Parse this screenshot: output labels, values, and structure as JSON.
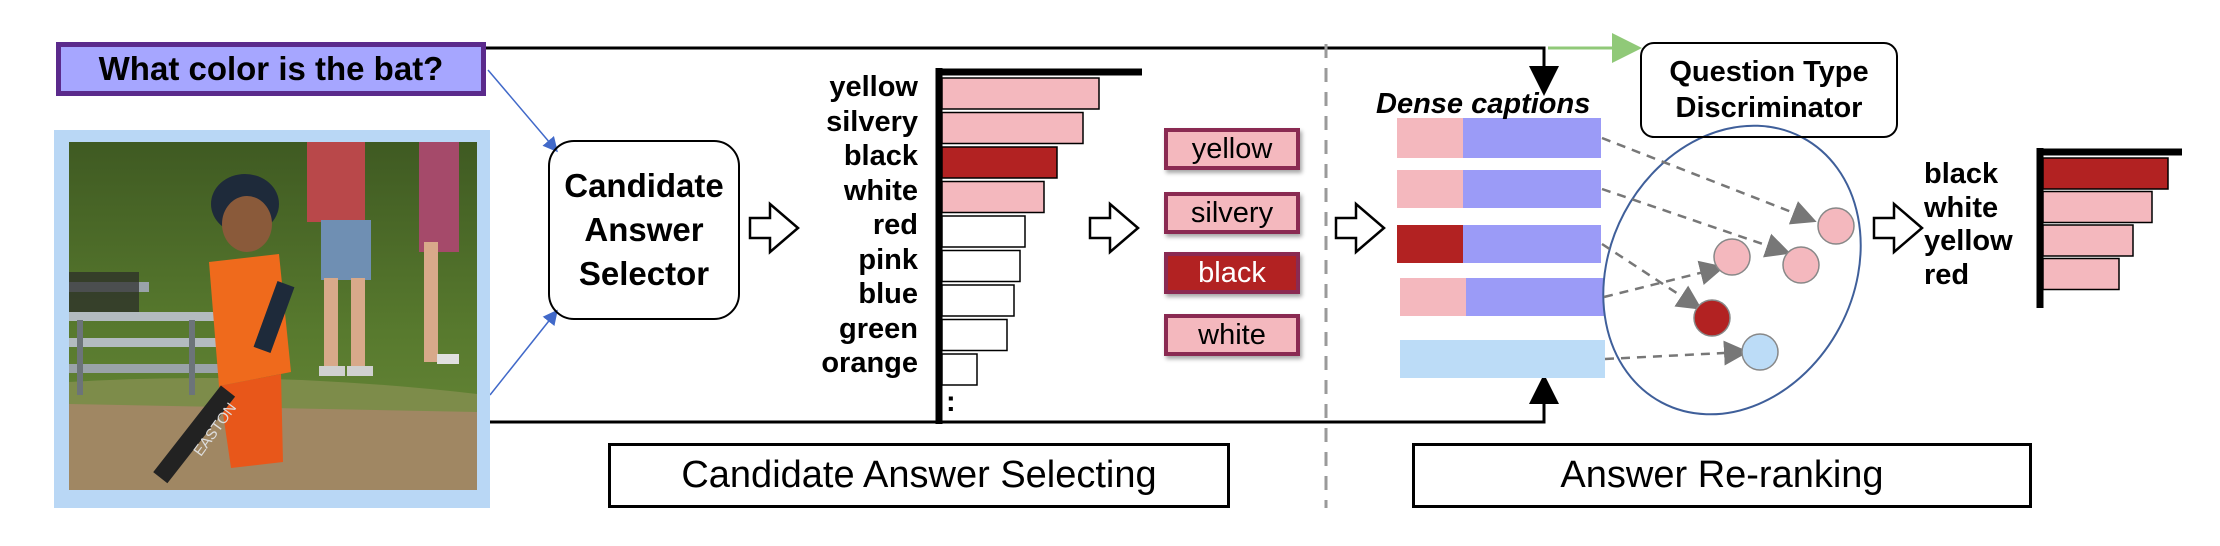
{
  "question": "What color is the bat?",
  "candidate_selector_lines": [
    "Candidate",
    "Answer",
    "Selector"
  ],
  "candidate_list": [
    "yellow",
    "silvery",
    "black",
    "white",
    "red",
    "pink",
    "blue",
    "green",
    "orange"
  ],
  "candidate_ellipsis": ":",
  "candidate_bars": [
    {
      "label": "yellow",
      "score": 0.85,
      "color": "#f4b8be"
    },
    {
      "label": "silvery",
      "score": 0.76,
      "color": "#f4b8be"
    },
    {
      "label": "black",
      "score": 0.62,
      "color": "#b22222"
    },
    {
      "label": "white",
      "score": 0.55,
      "color": "#f4b8be"
    },
    {
      "label": "red",
      "score": 0.45,
      "color": "#ffffff"
    },
    {
      "label": "pink",
      "score": 0.42,
      "color": "#ffffff"
    },
    {
      "label": "blue",
      "score": 0.39,
      "color": "#ffffff"
    },
    {
      "label": "green",
      "score": 0.35,
      "color": "#ffffff"
    },
    {
      "label": "orange",
      "score": 0.19,
      "color": "#ffffff"
    }
  ],
  "picked_answers": [
    {
      "label": "yellow",
      "fill": "#f4b8be",
      "text_color": "#000000"
    },
    {
      "label": "silvery",
      "fill": "#f4b8be",
      "text_color": "#000000"
    },
    {
      "label": "black",
      "fill": "#b22222",
      "text_color": "#ffffff"
    },
    {
      "label": "white",
      "fill": "#f4b8be",
      "text_color": "#000000"
    }
  ],
  "dense_captions_title": "Dense captions",
  "question_type_lines": [
    "Question Type",
    "Discriminator"
  ],
  "ranked_list": [
    "black",
    "white",
    "yellow",
    "red"
  ],
  "ranked_bars": [
    {
      "label": "black",
      "score": 1.0,
      "color": "#b22222"
    },
    {
      "label": "white",
      "score": 0.87,
      "color": "#f4b8be"
    },
    {
      "label": "yellow",
      "score": 0.72,
      "color": "#f4b8be"
    },
    {
      "label": "red",
      "score": 0.61,
      "color": "#f4b8be"
    }
  ],
  "footer_left": "Candidate Answer Selecting",
  "footer_right": "Answer Re-ranking",
  "colors": {
    "question_fill": "#a6a6ff",
    "question_border": "#5b2a8c",
    "caption_blue": "#9b9bf7",
    "caption_light_blue": "#bcdcf7",
    "pink": "#f4b8be",
    "dark_red": "#b22222",
    "green_arrow": "#90c978",
    "ellipse_stroke": "#3f5f9a"
  }
}
